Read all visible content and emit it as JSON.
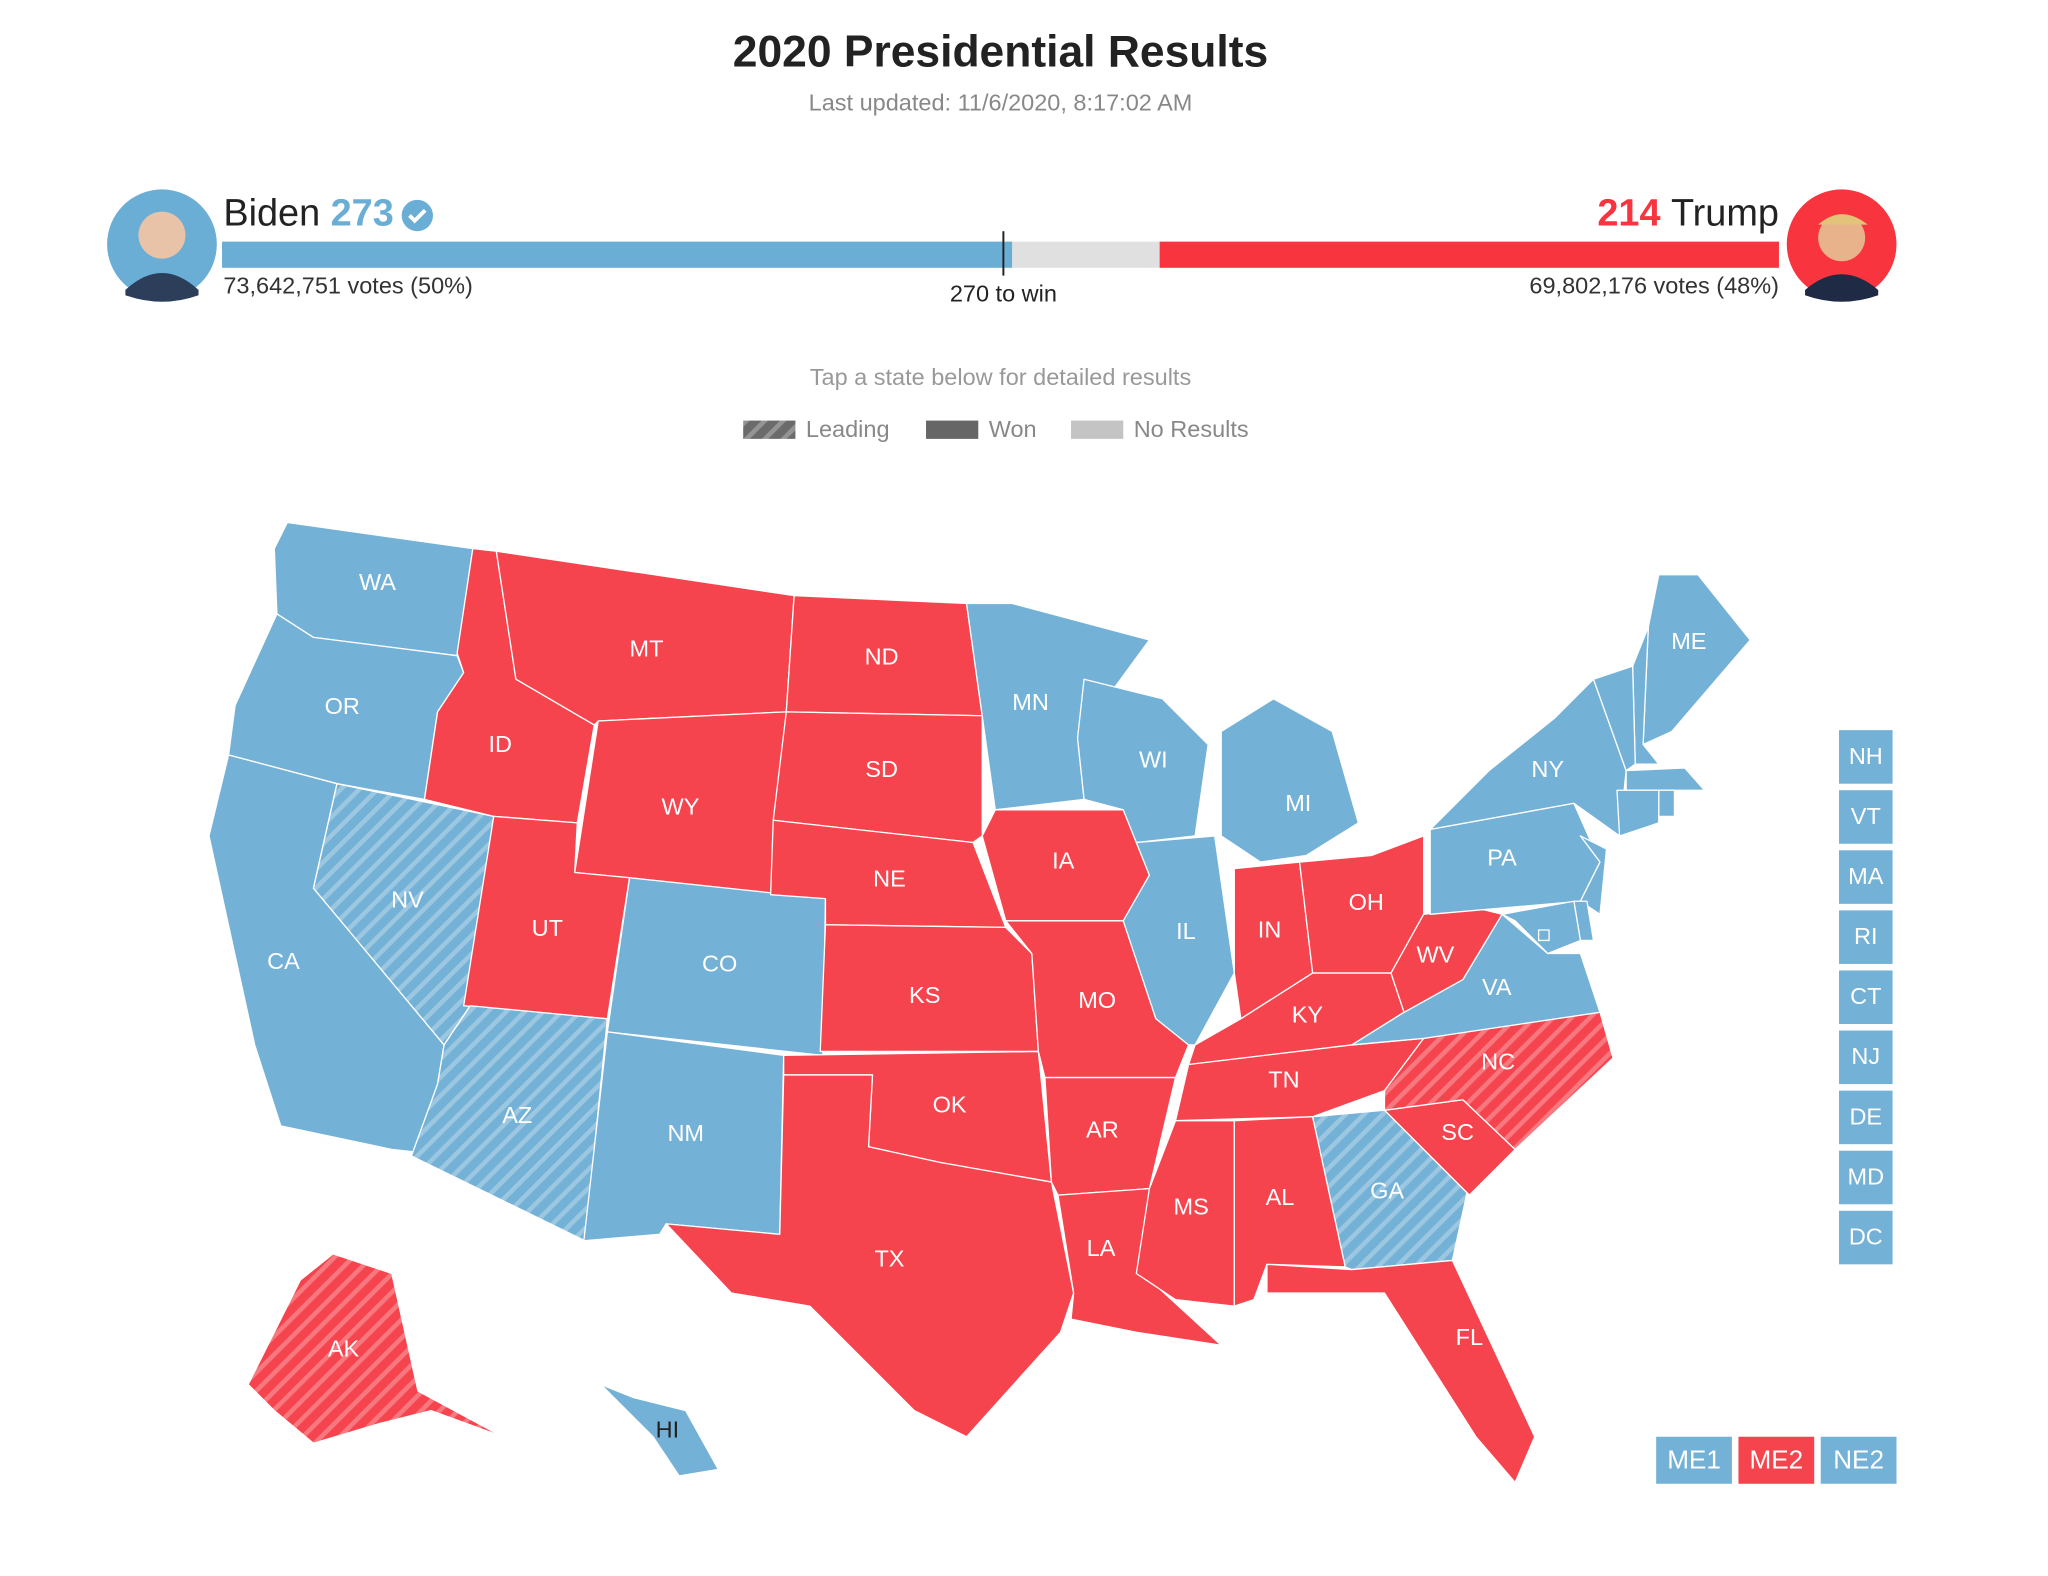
{
  "header": {
    "title": "2020 Presidential Results",
    "updated": "Last updated: 11/6/2020, 8:17:02 AM"
  },
  "chart_data": {
    "type": "electoral-map",
    "xlim": [
      0,
      538
    ],
    "threshold": {
      "value": 270,
      "label": "270 to win"
    },
    "candidates": [
      {
        "name": "Biden",
        "electoral_votes": 273,
        "votes_label": "73,642,751 votes (50%)",
        "color": "#6aaed6",
        "called": true
      },
      {
        "name": "Trump",
        "electoral_votes": 214,
        "votes_label": "69,802,176 votes (48%)",
        "color": "#f8343f",
        "called": false
      }
    ],
    "instruction": "Tap a state below for detailed results",
    "legend": [
      {
        "label": "Leading",
        "color": "#6b6b6b",
        "hatched": true
      },
      {
        "label": "Won",
        "color": "#666666",
        "hatched": false
      },
      {
        "label": "No Results",
        "color": "#c4c4c4",
        "hatched": false
      }
    ],
    "party_colors": {
      "D": "#74b1d6",
      "R": "#f5444d"
    },
    "states": [
      {
        "abbr": "WA",
        "party": "D",
        "status": "won"
      },
      {
        "abbr": "OR",
        "party": "D",
        "status": "won"
      },
      {
        "abbr": "CA",
        "party": "D",
        "status": "won"
      },
      {
        "abbr": "NV",
        "party": "D",
        "status": "leading"
      },
      {
        "abbr": "ID",
        "party": "R",
        "status": "won"
      },
      {
        "abbr": "MT",
        "party": "R",
        "status": "won"
      },
      {
        "abbr": "WY",
        "party": "R",
        "status": "won"
      },
      {
        "abbr": "UT",
        "party": "R",
        "status": "won"
      },
      {
        "abbr": "AZ",
        "party": "D",
        "status": "leading"
      },
      {
        "abbr": "CO",
        "party": "D",
        "status": "won"
      },
      {
        "abbr": "NM",
        "party": "D",
        "status": "won"
      },
      {
        "abbr": "ND",
        "party": "R",
        "status": "won"
      },
      {
        "abbr": "SD",
        "party": "R",
        "status": "won"
      },
      {
        "abbr": "NE",
        "party": "R",
        "status": "won"
      },
      {
        "abbr": "KS",
        "party": "R",
        "status": "won"
      },
      {
        "abbr": "OK",
        "party": "R",
        "status": "won"
      },
      {
        "abbr": "TX",
        "party": "R",
        "status": "won"
      },
      {
        "abbr": "MN",
        "party": "D",
        "status": "won"
      },
      {
        "abbr": "IA",
        "party": "R",
        "status": "won"
      },
      {
        "abbr": "MO",
        "party": "R",
        "status": "won"
      },
      {
        "abbr": "AR",
        "party": "R",
        "status": "won"
      },
      {
        "abbr": "LA",
        "party": "R",
        "status": "won"
      },
      {
        "abbr": "WI",
        "party": "D",
        "status": "won"
      },
      {
        "abbr": "IL",
        "party": "D",
        "status": "won"
      },
      {
        "abbr": "MI",
        "party": "D",
        "status": "won"
      },
      {
        "abbr": "IN",
        "party": "R",
        "status": "won"
      },
      {
        "abbr": "OH",
        "party": "R",
        "status": "won"
      },
      {
        "abbr": "KY",
        "party": "R",
        "status": "won"
      },
      {
        "abbr": "TN",
        "party": "R",
        "status": "won"
      },
      {
        "abbr": "MS",
        "party": "R",
        "status": "won"
      },
      {
        "abbr": "AL",
        "party": "R",
        "status": "won"
      },
      {
        "abbr": "GA",
        "party": "D",
        "status": "leading"
      },
      {
        "abbr": "FL",
        "party": "R",
        "status": "won"
      },
      {
        "abbr": "SC",
        "party": "R",
        "status": "won"
      },
      {
        "abbr": "NC",
        "party": "R",
        "status": "leading"
      },
      {
        "abbr": "VA",
        "party": "D",
        "status": "won"
      },
      {
        "abbr": "WV",
        "party": "R",
        "status": "won"
      },
      {
        "abbr": "PA",
        "party": "D",
        "status": "won"
      },
      {
        "abbr": "NY",
        "party": "D",
        "status": "won"
      },
      {
        "abbr": "ME",
        "party": "D",
        "status": "won"
      },
      {
        "abbr": "AK",
        "party": "R",
        "status": "leading"
      },
      {
        "abbr": "HI",
        "party": "D",
        "status": "won"
      },
      {
        "abbr": "NH",
        "party": "D",
        "status": "won"
      },
      {
        "abbr": "VT",
        "party": "D",
        "status": "won"
      },
      {
        "abbr": "MA",
        "party": "D",
        "status": "won"
      },
      {
        "abbr": "RI",
        "party": "D",
        "status": "won"
      },
      {
        "abbr": "CT",
        "party": "D",
        "status": "won"
      },
      {
        "abbr": "NJ",
        "party": "D",
        "status": "won"
      },
      {
        "abbr": "DE",
        "party": "D",
        "status": "won"
      },
      {
        "abbr": "MD",
        "party": "D",
        "status": "won"
      },
      {
        "abbr": "DC",
        "party": "D",
        "status": "won"
      }
    ],
    "districts": [
      {
        "label": "ME1",
        "party": "D"
      },
      {
        "label": "ME2",
        "party": "R"
      },
      {
        "label": "NE2",
        "party": "D"
      }
    ]
  }
}
